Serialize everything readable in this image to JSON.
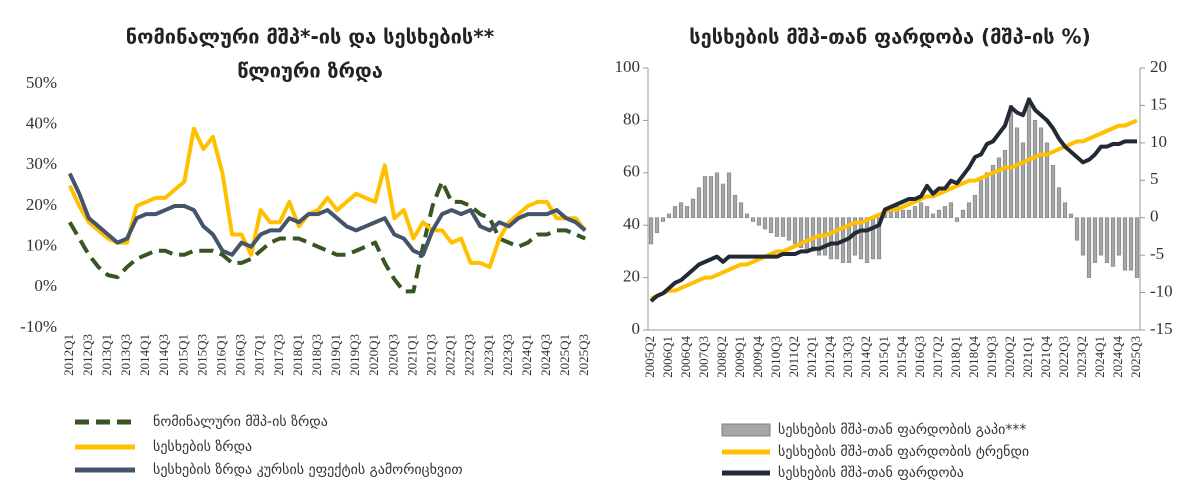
{
  "chart_data": [
    {
      "type": "line",
      "title": [
        "ნომინალური მშპ*-ის და სესხების**",
        "წლიური ზრდა"
      ],
      "categories": [
        "2012Q1",
        null,
        "2012Q3",
        null,
        "2013Q1",
        null,
        "2013Q3",
        null,
        "2014Q1",
        null,
        "2014Q3",
        null,
        "2015Q1",
        null,
        "2015Q3",
        null,
        "2016Q1",
        null,
        "2016Q3",
        null,
        "2017Q1",
        null,
        "2017Q3",
        null,
        "2018Q1",
        null,
        "2018Q3",
        null,
        "2019Q1",
        null,
        "2019Q3",
        null,
        "2020Q1",
        null,
        "2020Q3",
        null,
        "2021Q1",
        null,
        "2021Q3",
        null,
        "2022Q1",
        null,
        "2022Q3",
        null,
        "2023Q1",
        null,
        "2023Q3",
        null,
        "2024Q1",
        null,
        "2024Q3",
        null,
        "2025Q1",
        null,
        "2025Q3"
      ],
      "ylim": [
        -10,
        50
      ],
      "yticks": [
        {
          "value": -10,
          "label": "-10%"
        },
        {
          "value": 0,
          "label": "0%"
        },
        {
          "value": 10,
          "label": "10%"
        },
        {
          "value": 20,
          "label": "20%"
        },
        {
          "value": 30,
          "label": "30%"
        },
        {
          "value": 40,
          "label": "40%"
        },
        {
          "value": 50,
          "label": "50%"
        }
      ],
      "series": [
        {
          "name": "ნომინალური მშპ-ის ზრდა",
          "type": "line",
          "dash": true,
          "color": "#375623",
          "values": [
            16,
            12,
            8,
            5,
            3,
            2.5,
            5,
            7,
            8,
            9,
            9,
            8,
            8,
            9,
            9,
            9,
            8,
            6,
            6,
            7,
            9,
            11,
            12,
            12,
            12,
            11,
            10,
            9,
            8,
            8,
            9,
            10,
            11,
            6,
            2,
            -1,
            -1,
            10,
            20,
            26,
            21,
            21,
            20,
            18,
            17,
            12,
            11,
            10,
            11,
            13,
            13,
            14,
            14,
            13,
            12
          ]
        },
        {
          "name": "სესხების ზრდა",
          "type": "line",
          "color": "#ffc000",
          "values": [
            25,
            20,
            16,
            14,
            12,
            11,
            11,
            20,
            21,
            22,
            22,
            24,
            26,
            39,
            34,
            37,
            28,
            13,
            13,
            8,
            19,
            16,
            16,
            21,
            15,
            18,
            19,
            22,
            19,
            21,
            23,
            22,
            21,
            30,
            17,
            19,
            12,
            16,
            14,
            14,
            11,
            12,
            6,
            6,
            5,
            12,
            16,
            18,
            20,
            21,
            21,
            17,
            17,
            17,
            14
          ]
        },
        {
          "name": "სესხების ზრდა კურსის ეფექტის გამორიცხვით",
          "type": "line",
          "color": "#44546a",
          "values": [
            28,
            23,
            17,
            15,
            13,
            11,
            12,
            17,
            18,
            18,
            19,
            20,
            20,
            19,
            15,
            13,
            9,
            8,
            11,
            10,
            13,
            14,
            14,
            17,
            16,
            18,
            18,
            19,
            17,
            15,
            14,
            15,
            16,
            17,
            13,
            12,
            9,
            8,
            14,
            18,
            19,
            18,
            19,
            15,
            14,
            16,
            15,
            17,
            18,
            18,
            18,
            19,
            17,
            16,
            14
          ]
        }
      ]
    },
    {
      "type": "combo",
      "title": [
        "სესხების მშპ-თან ფარდობა (მშპ-ის %)"
      ],
      "categories": [
        "2005Q2",
        null,
        null,
        "2006Q1",
        null,
        null,
        "2006Q4",
        null,
        null,
        "2007Q3",
        null,
        null,
        "2008Q2",
        null,
        null,
        "2009Q1",
        null,
        null,
        "2009Q4",
        null,
        null,
        "2010Q3",
        null,
        null,
        "2011Q2",
        null,
        null,
        "2012Q1",
        null,
        null,
        "2012Q4",
        null,
        null,
        "2013Q3",
        null,
        null,
        "2014Q2",
        null,
        null,
        "2015Q1",
        null,
        null,
        "2015Q4",
        null,
        null,
        "2016Q3",
        null,
        null,
        "2017Q2",
        null,
        null,
        "2018Q1",
        null,
        null,
        "2018Q4",
        null,
        null,
        "2019Q3",
        null,
        null,
        "2020Q2",
        null,
        null,
        "2021Q1",
        null,
        null,
        "2021Q4",
        null,
        null,
        "2022Q3",
        null,
        null,
        "2023Q2",
        null,
        null,
        "2024Q1",
        null,
        null,
        "2024Q4",
        null,
        null,
        "2025Q3"
      ],
      "ylim": [
        0,
        100
      ],
      "yticks": [
        0,
        20,
        40,
        60,
        80,
        100
      ],
      "y2lim": [
        -15,
        20
      ],
      "y2ticks": [
        -15,
        -10,
        -5,
        0,
        5,
        10,
        15,
        20
      ],
      "axis_lines": true,
      "series": [
        {
          "name": "სესხების მშპ-თან ფარდობის გაპი***",
          "type": "bar",
          "axis": "y2",
          "color": "#a6a6a6",
          "values": [
            -3.5,
            -2,
            -0.5,
            0.5,
            1.5,
            2,
            1.5,
            2.5,
            4,
            5.5,
            5.5,
            6,
            4.5,
            6,
            3,
            2,
            0.5,
            -0.5,
            -1,
            -1.5,
            -2,
            -2.5,
            -2.5,
            -3,
            -3.5,
            -4,
            -4.5,
            -4.5,
            -5,
            -5,
            -5.5,
            -5.5,
            -6,
            -6,
            -5,
            -5.5,
            -6,
            -5.5,
            -5.5,
            1,
            1.5,
            1.5,
            1,
            1,
            1.5,
            2,
            1.5,
            0.5,
            1,
            1.5,
            2,
            -0.5,
            1,
            2,
            3,
            5,
            6,
            7,
            8,
            9,
            15,
            12,
            10,
            16,
            13,
            12,
            10,
            7,
            4,
            2,
            0.5,
            -3,
            -5,
            -8,
            -6,
            -5,
            -6,
            -6.5,
            -5,
            -7,
            -7,
            -8
          ]
        },
        {
          "name": "სესხების მშპ-თან ფარდობის ტრენდი",
          "type": "line",
          "color": "#ffc000",
          "values": [
            12,
            13,
            14,
            15,
            15,
            16,
            17,
            18,
            19,
            20,
            20,
            21,
            22,
            23,
            24,
            25,
            25,
            26,
            27,
            28,
            29,
            30,
            30,
            31,
            32,
            33,
            34,
            35,
            36,
            36,
            37,
            38,
            39,
            40,
            41,
            41,
            42,
            43,
            44,
            45,
            46,
            46,
            47,
            48,
            49,
            50,
            51,
            51,
            52,
            53,
            54,
            55,
            56,
            57,
            57,
            58,
            59,
            60,
            61,
            62,
            62,
            63,
            64,
            65,
            66,
            67,
            67,
            68,
            69,
            70,
            71,
            72,
            72,
            73,
            74,
            75,
            76,
            77,
            78,
            78,
            79,
            80
          ]
        },
        {
          "name": "სესხების მშპ-თან ფარდობა",
          "type": "line",
          "color": "#222a35",
          "values": [
            11,
            13,
            14,
            16,
            18,
            19,
            21,
            23,
            25,
            26,
            27,
            28,
            26,
            28,
            28,
            28,
            28,
            28,
            28,
            28,
            28,
            28,
            29,
            29,
            29,
            30,
            30,
            31,
            31,
            32,
            33,
            33,
            34,
            35,
            37,
            38,
            38,
            39,
            40,
            46,
            47,
            48,
            49,
            50,
            50,
            51,
            55,
            52,
            54,
            54,
            57,
            56,
            59,
            62,
            66,
            67,
            71,
            72,
            75,
            78,
            85,
            83,
            82,
            88,
            84,
            82,
            80,
            77,
            73,
            70,
            68,
            66,
            64,
            65,
            67,
            70,
            70,
            71,
            71,
            72,
            72,
            72
          ]
        }
      ]
    }
  ]
}
